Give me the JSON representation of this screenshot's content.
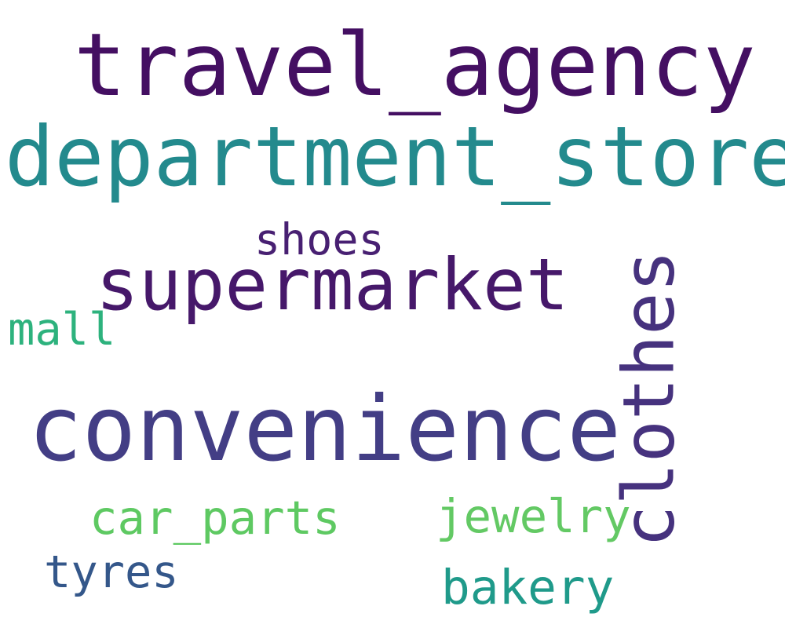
{
  "words": [
    {
      "id": "travel_agency",
      "text": "travel_agency",
      "color": "#440f62",
      "orientation": "horizontal"
    },
    {
      "id": "department_store",
      "text": "department_store",
      "color": "#238a8d",
      "orientation": "horizontal"
    },
    {
      "id": "shoes",
      "text": "shoes",
      "color": "#482072",
      "orientation": "horizontal"
    },
    {
      "id": "supermarket",
      "text": "supermarket",
      "color": "#46186a",
      "orientation": "horizontal"
    },
    {
      "id": "mall",
      "text": "mall",
      "color": "#2db27d",
      "orientation": "horizontal"
    },
    {
      "id": "convenience",
      "text": "convenience",
      "color": "#433e85",
      "orientation": "horizontal"
    },
    {
      "id": "clothes",
      "text": "clothes",
      "color": "#46327e",
      "orientation": "vertical"
    },
    {
      "id": "car_parts",
      "text": "car_parts",
      "color": "#5ec962",
      "orientation": "horizontal"
    },
    {
      "id": "jewelry",
      "text": "jewelry",
      "color": "#63c964",
      "orientation": "horizontal"
    },
    {
      "id": "tyres",
      "text": "tyres",
      "color": "#34578a",
      "orientation": "horizontal"
    },
    {
      "id": "bakery",
      "text": "bakery",
      "color": "#1f9a8a",
      "orientation": "horizontal"
    }
  ]
}
